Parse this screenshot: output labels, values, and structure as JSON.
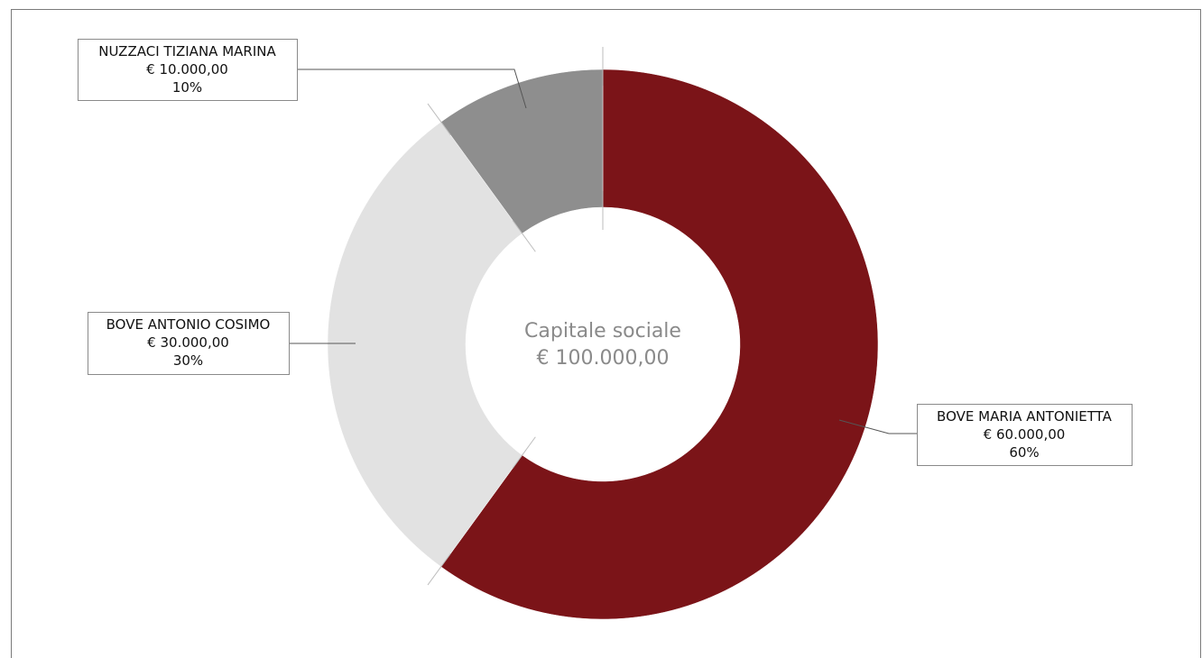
{
  "chart_data": {
    "type": "pie",
    "variant": "donut",
    "center_label": {
      "line1": "Capitale sociale",
      "line2": "€ 100.000,00"
    },
    "grid": false,
    "legend": "none",
    "slices": [
      {
        "name": "BOVE MARIA ANTONIETTA",
        "amount_label": "€ 60.000,00",
        "percent_label": "60%",
        "value": 60,
        "color": "#7b1418"
      },
      {
        "name": "BOVE ANTONIO COSIMO",
        "amount_label": "€ 30.000,00",
        "percent_label": "30%",
        "value": 30,
        "color": "#e2e2e2"
      },
      {
        "name": "NUZZACI TIZIANA MARINA",
        "amount_label": "€ 10.000,00",
        "percent_label": "10%",
        "value": 10,
        "color": "#8e8e8e"
      }
    ]
  }
}
